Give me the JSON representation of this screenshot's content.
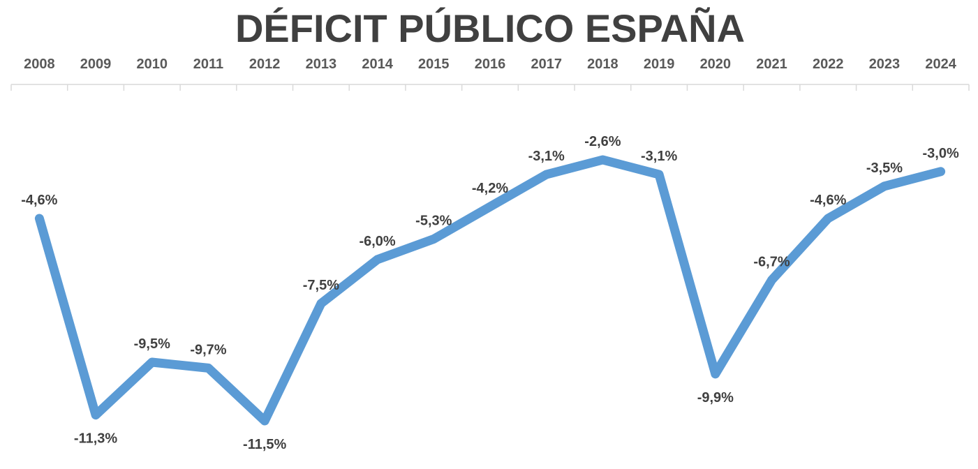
{
  "chart_data": {
    "type": "line",
    "title": "DÉFICIT PÚBLICO ESPAÑA",
    "xlabel": "",
    "ylabel": "",
    "x_axis_position": "top",
    "grid": false,
    "legend": "none",
    "ylim": [
      -12,
      -2
    ],
    "categories": [
      "2008",
      "2009",
      "2010",
      "2011",
      "2012",
      "2013",
      "2014",
      "2015",
      "2016",
      "2017",
      "2018",
      "2019",
      "2020",
      "2021",
      "2022",
      "2023",
      "2024"
    ],
    "series": [
      {
        "name": "Déficit público (% PIB)",
        "color": "#5B9BD5",
        "values": [
          -4.6,
          -11.3,
          -9.5,
          -9.7,
          -11.5,
          -7.5,
          -6.0,
          -5.3,
          -4.2,
          -3.1,
          -2.6,
          -3.1,
          -9.9,
          -6.7,
          -4.6,
          -3.5,
          -3.0
        ],
        "data_labels": [
          "-4,6%",
          "-11,3%",
          "-9,5%",
          "-9,7%",
          "-11,5%",
          "-7,5%",
          "-6,0%",
          "-5,3%",
          "-4,2%",
          "-3,1%",
          "-2,6%",
          "-3,1%",
          "-9,9%",
          "-6,7%",
          "-4,6%",
          "-3,5%",
          "-3,0%"
        ],
        "label_positions": [
          "above",
          "below",
          "above",
          "above",
          "below",
          "above",
          "above",
          "above",
          "above",
          "above",
          "above",
          "above",
          "below",
          "above",
          "above",
          "above",
          "above"
        ]
      }
    ]
  }
}
